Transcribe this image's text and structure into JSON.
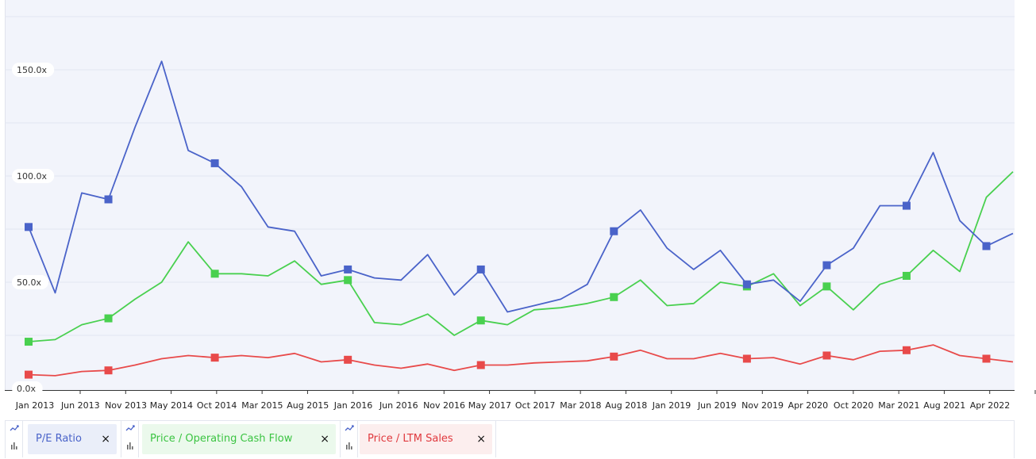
{
  "chart_data": {
    "type": "line",
    "x_labels": [
      "Jan 2013",
      "Jun 2013",
      "Nov 2013",
      "May 2014",
      "Oct 2014",
      "Mar 2015",
      "Aug 2015",
      "Jan 2016",
      "Jun 2016",
      "Nov 2016",
      "May 2017",
      "Oct 2017",
      "Mar 2018",
      "Aug 2018",
      "Jan 2019",
      "Jun 2019",
      "Nov 2019",
      "Apr 2020",
      "Oct 2020",
      "Mar 2021",
      "Aug 2021",
      "Apr 2022"
    ],
    "y_ticks": [
      "0.0x",
      "50.0x",
      "100.0x",
      "150.0x"
    ],
    "y_tick_values": [
      0,
      50,
      100,
      150
    ],
    "ylim": [
      0,
      175
    ],
    "grid": true,
    "series": [
      {
        "name": "P/E Ratio",
        "color": "#4a63c9",
        "values": [
          76,
          45,
          92,
          89,
          123,
          154,
          112,
          106,
          95,
          76,
          74,
          53,
          56,
          52,
          51,
          63,
          44,
          56,
          36,
          39,
          42,
          49,
          74,
          84,
          66,
          56,
          65,
          49,
          51,
          41,
          58,
          66,
          86,
          86,
          111,
          79,
          67,
          73
        ],
        "markers": [
          0,
          3,
          7,
          12,
          17,
          22,
          27,
          30,
          33,
          36
        ]
      },
      {
        "name": "Price / Operating Cash Flow",
        "color": "#49d04f",
        "values": [
          22,
          23,
          30,
          33,
          42,
          50,
          69,
          54,
          54,
          53,
          60,
          49,
          51,
          31,
          30,
          35,
          25,
          32,
          30,
          37,
          38,
          40,
          43,
          51,
          39,
          40,
          50,
          48,
          54,
          39,
          48,
          37,
          49,
          53,
          65,
          55,
          90,
          102
        ],
        "markers": [
          0,
          3,
          7,
          12,
          17,
          22,
          27,
          30,
          33
        ]
      },
      {
        "name": "Price / LTM Sales",
        "color": "#e84a4a",
        "values": [
          6.5,
          6,
          8,
          8.5,
          11,
          14,
          15.5,
          14.5,
          15.5,
          14.5,
          16.5,
          12.5,
          13.5,
          11,
          9.5,
          11.5,
          8.5,
          11,
          11,
          12,
          12.5,
          13,
          15,
          18,
          14,
          14,
          16.5,
          14,
          14.5,
          11.5,
          15.5,
          13.5,
          17.5,
          18,
          20.5,
          15.5,
          14,
          12.5
        ],
        "markers": [
          0,
          3,
          7,
          12,
          17,
          22,
          27,
          30,
          33,
          36
        ]
      }
    ]
  },
  "legend": {
    "items": [
      {
        "label": "P/E Ratio",
        "text_color": "#4a63c9",
        "bg": "#eaeef9",
        "close": "×"
      },
      {
        "label": "Price / Operating Cash Flow",
        "text_color": "#3bc442",
        "bg": "#ebf9ec",
        "close": "×"
      },
      {
        "label": "Price / LTM Sales",
        "text_color": "#e0393e",
        "bg": "#fceeee",
        "close": "×"
      }
    ],
    "toggle_icon": "line-bar-toggle-icon"
  }
}
